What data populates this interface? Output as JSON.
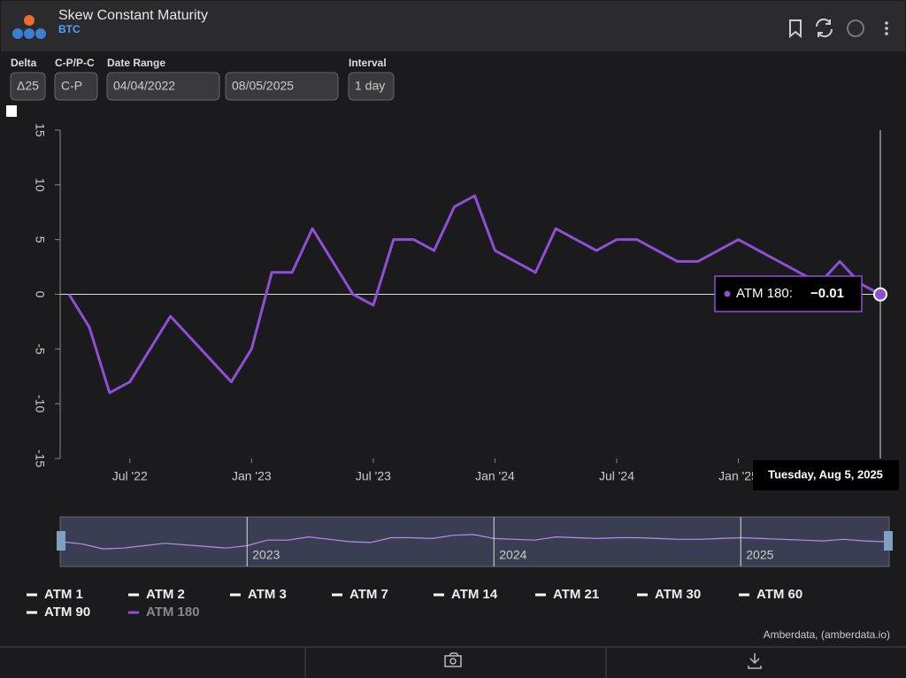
{
  "header": {
    "title": "Skew Constant Maturity",
    "subtitle": "BTC"
  },
  "controls": [
    {
      "label": "Delta",
      "value": "Δ25"
    },
    {
      "label": "C-P/P-C",
      "value": "C-P"
    },
    {
      "label": "Date Range",
      "value": "04/04/2022"
    },
    {
      "value": "08/05/2025"
    },
    {
      "label": "Interval",
      "value": "1 day"
    }
  ],
  "chart_data": {
    "type": "line",
    "x": [
      "2022-04",
      "2022-05",
      "2022-06",
      "2022-07",
      "2022-08",
      "2022-09",
      "2022-10",
      "2022-11",
      "2022-12",
      "2023-01",
      "2023-02",
      "2023-03",
      "2023-04",
      "2023-05",
      "2023-06",
      "2023-07",
      "2023-08",
      "2023-09",
      "2023-10",
      "2023-11",
      "2023-12",
      "2024-01",
      "2024-02",
      "2024-03",
      "2024-04",
      "2024-05",
      "2024-06",
      "2024-07",
      "2024-08",
      "2024-09",
      "2024-10",
      "2024-11",
      "2024-12",
      "2025-01",
      "2025-02",
      "2025-03",
      "2025-04",
      "2025-05",
      "2025-06",
      "2025-07",
      "2025-08"
    ],
    "series": [
      {
        "name": "ATM 180",
        "color": "#8e4fd6",
        "values": [
          0,
          -3,
          -9,
          -8,
          -5,
          -2,
          -4,
          -6,
          -8,
          -5,
          2,
          2,
          6,
          3,
          0,
          -1,
          5,
          5,
          4,
          8,
          9,
          4,
          3,
          2,
          6,
          5,
          4,
          5,
          5,
          4,
          3,
          3,
          4,
          5,
          4,
          3,
          2,
          1,
          3,
          1,
          -0.01
        ]
      }
    ],
    "legend_entries": [
      {
        "name": "ATM 1",
        "color": "#ffffff"
      },
      {
        "name": "ATM 2",
        "color": "#ffffff"
      },
      {
        "name": "ATM 3",
        "color": "#ffffff"
      },
      {
        "name": "ATM 7",
        "color": "#ffffff"
      },
      {
        "name": "ATM 14",
        "color": "#ffffff"
      },
      {
        "name": "ATM 21",
        "color": "#ffffff"
      },
      {
        "name": "ATM 30",
        "color": "#ffffff"
      },
      {
        "name": "ATM 60",
        "color": "#ffffff"
      },
      {
        "name": "ATM 90",
        "color": "#ffffff"
      }
    ],
    "xlim": [
      "2022-04",
      "2025-08"
    ],
    "xticks": [
      {
        "value": "2022-07",
        "label": "Jul '22"
      },
      {
        "value": "2023-01",
        "label": "Jan '23"
      },
      {
        "value": "2023-07",
        "label": "Jul '23"
      },
      {
        "value": "2024-01",
        "label": "Jan '24"
      },
      {
        "value": "2024-07",
        "label": "Jul '24"
      },
      {
        "value": "2025-01",
        "label": "Jan '25"
      }
    ],
    "ylim": [
      -15,
      15
    ],
    "yticks": [
      -15,
      -10,
      -5,
      0,
      5,
      10,
      15
    ],
    "navigator_ticks": [
      {
        "value": "2023-01",
        "label": "2023"
      },
      {
        "value": "2024-01",
        "label": "2024"
      },
      {
        "value": "2025-01",
        "label": "2025"
      }
    ],
    "tooltip": {
      "label": "ATM 180:",
      "value_label": "−0.01",
      "date": "Tuesday, Aug 5, 2025"
    },
    "credit": "Amberdata, (amberdata.io)"
  }
}
